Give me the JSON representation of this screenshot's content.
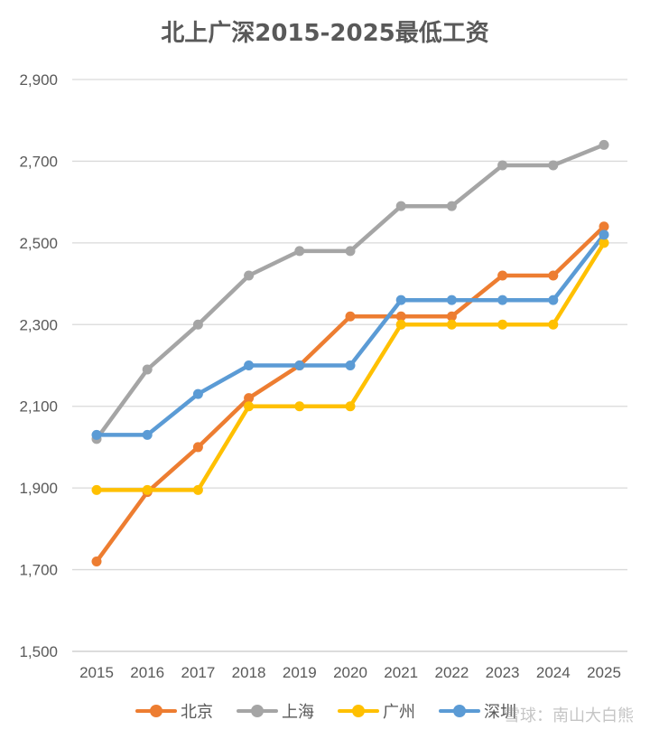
{
  "chart_data": {
    "type": "line",
    "title": "北上广深2015-2025最低工资",
    "xlabel": "",
    "ylabel": "",
    "categories": [
      "2015",
      "2016",
      "2017",
      "2018",
      "2019",
      "2020",
      "2021",
      "2022",
      "2023",
      "2024",
      "2025"
    ],
    "ylim": [
      1500,
      2900
    ],
    "yticks": [
      1500,
      1700,
      1900,
      2100,
      2300,
      2500,
      2700,
      2900
    ],
    "ytick_labels": [
      "1,500",
      "1,700",
      "1,900",
      "2,100",
      "2,300",
      "2,500",
      "2,700",
      "2,900"
    ],
    "grid": "horizontal",
    "legend_position": "bottom",
    "series": [
      {
        "name": "北京",
        "color": "#ED7D31",
        "values": [
          1720,
          1890,
          2000,
          2120,
          2200,
          2320,
          2320,
          2320,
          2420,
          2420,
          2540
        ]
      },
      {
        "name": "上海",
        "color": "#A5A5A5",
        "values": [
          2020,
          2190,
          2300,
          2420,
          2480,
          2480,
          2590,
          2590,
          2690,
          2690,
          2740
        ]
      },
      {
        "name": "广州",
        "color": "#FFC000",
        "values": [
          1895,
          1895,
          1895,
          2100,
          2100,
          2100,
          2300,
          2300,
          2300,
          2300,
          2500
        ]
      },
      {
        "name": "深圳",
        "color": "#5B9BD5",
        "values": [
          2030,
          2030,
          2130,
          2200,
          2200,
          2200,
          2360,
          2360,
          2360,
          2360,
          2520
        ]
      }
    ]
  },
  "watermark": "雪球：南山大白熊"
}
